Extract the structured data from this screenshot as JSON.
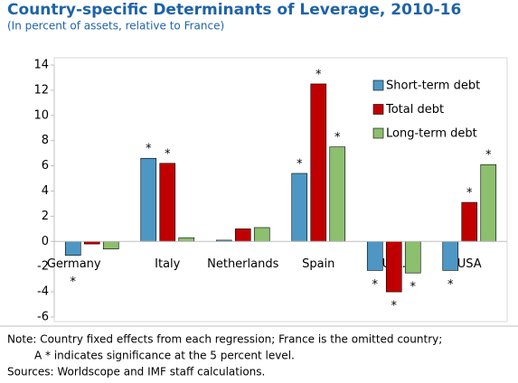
{
  "chart_data": {
    "type": "bar",
    "title": "Country-specific Determinants of Leverage, 2010-16",
    "subtitle": "(In percent of assets, relative to France)",
    "categories": [
      "Germany",
      "Italy",
      "Netherlands",
      "Spain",
      "U.K.",
      "USA"
    ],
    "series": [
      {
        "name": "Short-term debt",
        "color": "#4e97c4",
        "values": [
          -1.1,
          6.6,
          0.1,
          5.4,
          -2.3,
          -2.3
        ],
        "significance": [
          "*",
          "*",
          null,
          "*",
          "*",
          "*"
        ]
      },
      {
        "name": "Total debt",
        "color": "#c00000",
        "values": [
          -0.2,
          6.2,
          1.0,
          12.5,
          -4.0,
          3.1
        ],
        "significance": [
          null,
          "*",
          null,
          "*",
          "*",
          "*"
        ]
      },
      {
        "name": "Long-term debt",
        "color": "#8cbf6e",
        "values": [
          -0.6,
          0.3,
          1.1,
          7.5,
          -2.5,
          6.1
        ],
        "significance": [
          null,
          null,
          null,
          "*",
          "*",
          "*"
        ]
      }
    ],
    "ylim": [
      -6,
      14
    ],
    "yticks": [
      -6,
      -4,
      -2,
      0,
      2,
      4,
      6,
      8,
      10,
      12,
      14
    ],
    "legend": "upper right",
    "notes": [
      "Note: Country fixed effects from each regression; France is the omitted country;",
      "A * indicates significance at the 5 percent level.",
      "Sources: Worldscope and IMF staff calculations."
    ]
  }
}
